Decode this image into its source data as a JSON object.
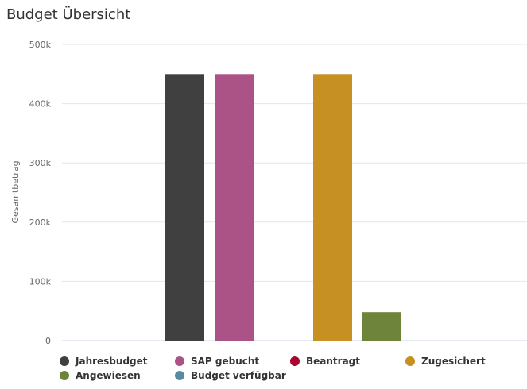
{
  "chart_data": {
    "type": "bar",
    "title": "Budget Übersicht",
    "xlabel": "",
    "ylabel": "Gesamtbetrag",
    "ylim": [
      0,
      500000
    ],
    "yticks": [
      0,
      100000,
      200000,
      300000,
      400000,
      500000
    ],
    "ytick_labels": [
      "0",
      "100k",
      "200k",
      "300k",
      "400k",
      "500k"
    ],
    "grid": true,
    "legend_placement": "bottom",
    "series": [
      {
        "name": "Jahresbudget",
        "value": 450000,
        "color": "#404040"
      },
      {
        "name": "SAP gebucht",
        "value": 450000,
        "color": "#ab5386"
      },
      {
        "name": "Beantragt",
        "value": 0,
        "color": "#a8062f"
      },
      {
        "name": "Zugesichert",
        "value": 450000,
        "color": "#c79022"
      },
      {
        "name": "Angewiesen",
        "value": 48000,
        "color": "#6e843b"
      },
      {
        "name": "Budget verfügbar",
        "value": 0,
        "color": "#5a8aa0"
      }
    ]
  }
}
